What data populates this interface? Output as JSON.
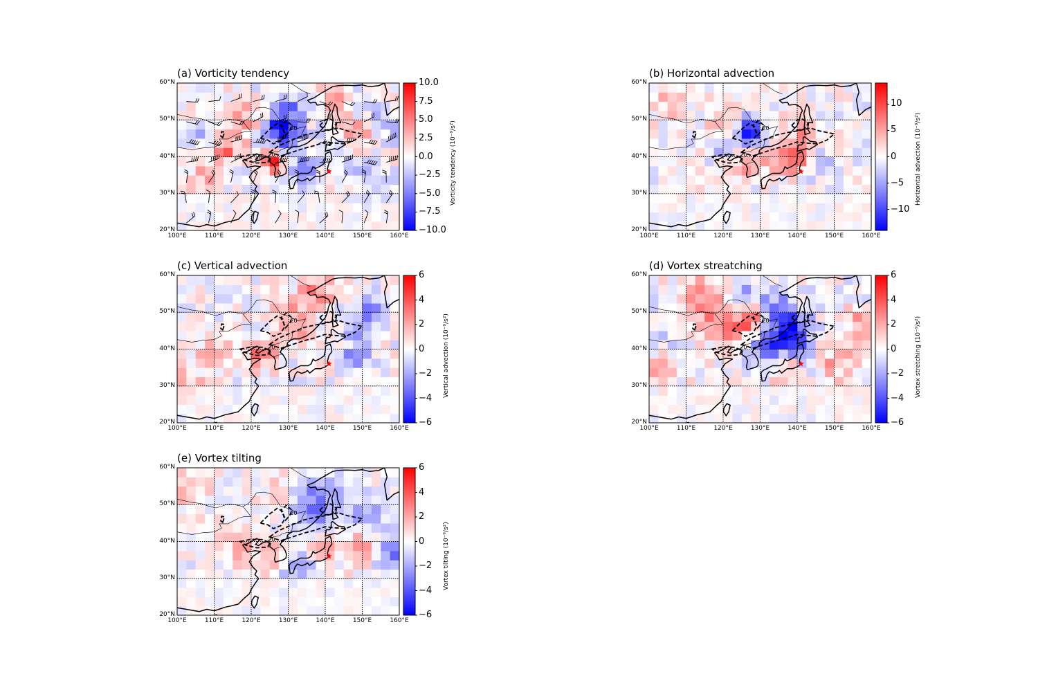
{
  "figure": {
    "x_tick_labels": [
      "100°E",
      "110°E",
      "120°E",
      "130°E",
      "140°E",
      "150°E",
      "160°E"
    ],
    "y_tick_labels": [
      "20°N",
      "30°N",
      "40°N",
      "50°N",
      "60°N"
    ],
    "contour_label": "20",
    "marker": {
      "symbol": "star",
      "lon": 141,
      "lat": 36,
      "color": "#ff0000"
    },
    "colormap": [
      "#0000ff",
      "#ffffff",
      "#ff0000"
    ]
  },
  "panels": [
    {
      "id": "a",
      "title": "(a) Vorticity tendency",
      "cbar_label": "Vorticity tendency (10⁻⁹/s²)",
      "cbar_ticks": [
        "10.0",
        "7.5",
        "5.0",
        "2.5",
        "0.0",
        "−2.5",
        "−5.0",
        "−7.5",
        "−10.0"
      ],
      "cbar_range": [
        -10,
        10
      ],
      "wind_barbs": true
    },
    {
      "id": "b",
      "title": "(b) Horizontal advection",
      "cbar_label": "Horizontal advection (10⁻⁹/s²)",
      "cbar_ticks": [
        "10",
        "5",
        "0",
        "−5",
        "−10"
      ],
      "cbar_range": [
        -14,
        14
      ],
      "wind_barbs": false
    },
    {
      "id": "c",
      "title": "(c) Vertical advection",
      "cbar_label": "Vertical advection (10⁻⁹/s²)",
      "cbar_ticks": [
        "6",
        "4",
        "2",
        "0",
        "−2",
        "−4",
        "−6"
      ],
      "cbar_range": [
        -6,
        6
      ],
      "wind_barbs": false
    },
    {
      "id": "d",
      "title": "(d) Vortex streatching",
      "cbar_label": "Vortex stretching (10⁻⁹/s²)",
      "cbar_ticks": [
        "6",
        "4",
        "2",
        "0",
        "−2",
        "−4",
        "−6"
      ],
      "cbar_range": [
        -6,
        6
      ],
      "wind_barbs": false
    },
    {
      "id": "e",
      "title": "(e) Vortex tilting",
      "cbar_label": "Vortex tilting (10⁻⁹/s²)",
      "cbar_ticks": [
        "6",
        "4",
        "2",
        "0",
        "−2",
        "−4",
        "−6"
      ],
      "cbar_range": [
        -6,
        6
      ],
      "wind_barbs": false
    }
  ]
}
